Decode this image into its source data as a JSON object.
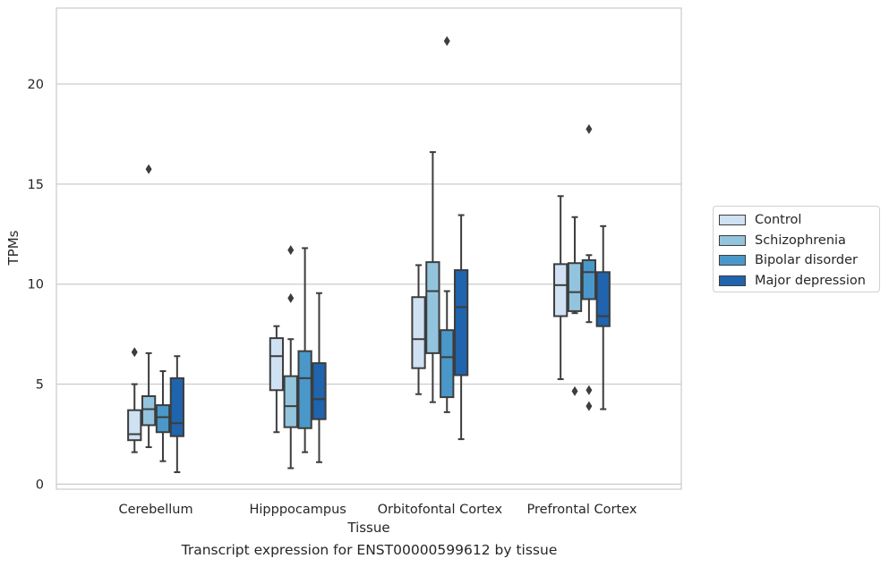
{
  "caption": "Transcript expression for ENST00000599612 by tissue",
  "chart_data": {
    "type": "box",
    "title": "",
    "xlabel": "Tissue",
    "ylabel": "TPMs",
    "ylim": [
      -0.25,
      23.8
    ],
    "yticks": [
      0,
      5,
      10,
      15,
      20
    ],
    "grid": "horizontal",
    "legend_position": "right",
    "categories": [
      "Cerebellum",
      "Hipppocampus",
      "Orbitofontal Cortex",
      "Prefrontal Cortex"
    ],
    "series": [
      {
        "name": "Control",
        "color": "#cfe1f2",
        "boxes": [
          {
            "whislo": 1.6,
            "q1": 2.2,
            "med": 2.5,
            "q3": 3.7,
            "whishi": 5.0,
            "fliers": [
              6.6
            ]
          },
          {
            "whislo": 2.6,
            "q1": 4.7,
            "med": 6.4,
            "q3": 7.3,
            "whishi": 7.9,
            "fliers": []
          },
          {
            "whislo": 4.5,
            "q1": 5.8,
            "med": 7.25,
            "q3": 9.35,
            "whishi": 10.95,
            "fliers": []
          },
          {
            "whislo": 5.25,
            "q1": 8.4,
            "med": 9.95,
            "q3": 11.0,
            "whishi": 14.4,
            "fliers": []
          }
        ]
      },
      {
        "name": "Schizophrenia",
        "color": "#93c4de",
        "boxes": [
          {
            "whislo": 1.85,
            "q1": 2.95,
            "med": 3.75,
            "q3": 4.4,
            "whishi": 6.55,
            "fliers": [
              15.75
            ]
          },
          {
            "whislo": 0.8,
            "q1": 2.85,
            "med": 3.9,
            "q3": 5.4,
            "whishi": 7.25,
            "fliers": [
              9.3,
              11.7
            ]
          },
          {
            "whislo": 4.1,
            "q1": 6.55,
            "med": 9.65,
            "q3": 11.1,
            "whishi": 16.6,
            "fliers": []
          },
          {
            "whislo": 8.55,
            "q1": 8.65,
            "med": 9.6,
            "q3": 11.05,
            "whishi": 13.35,
            "fliers": [
              4.65
            ]
          }
        ]
      },
      {
        "name": "Bipolar disorder",
        "color": "#4a98c9",
        "boxes": [
          {
            "whislo": 1.15,
            "q1": 2.6,
            "med": 3.35,
            "q3": 3.95,
            "whishi": 5.65,
            "fliers": []
          },
          {
            "whislo": 1.6,
            "q1": 2.8,
            "med": 5.3,
            "q3": 6.65,
            "whishi": 11.8,
            "fliers": []
          },
          {
            "whislo": 3.6,
            "q1": 4.35,
            "med": 6.35,
            "q3": 7.7,
            "whishi": 9.65,
            "fliers": [
              22.15
            ]
          },
          {
            "whislo": 8.1,
            "q1": 9.25,
            "med": 10.6,
            "q3": 11.2,
            "whishi": 11.45,
            "fliers": [
              3.9,
              4.7,
              17.75
            ]
          }
        ]
      },
      {
        "name": "Major depression",
        "color": "#1f64ad",
        "boxes": [
          {
            "whislo": 0.6,
            "q1": 2.4,
            "med": 3.05,
            "q3": 5.3,
            "whishi": 6.4,
            "fliers": []
          },
          {
            "whislo": 1.1,
            "q1": 3.25,
            "med": 4.25,
            "q3": 6.05,
            "whishi": 9.55,
            "fliers": []
          },
          {
            "whislo": 2.25,
            "q1": 5.45,
            "med": 8.85,
            "q3": 10.7,
            "whishi": 13.45,
            "fliers": []
          },
          {
            "whislo": 3.75,
            "q1": 7.9,
            "med": 8.4,
            "q3": 10.6,
            "whishi": 12.9,
            "fliers": []
          }
        ]
      }
    ]
  }
}
